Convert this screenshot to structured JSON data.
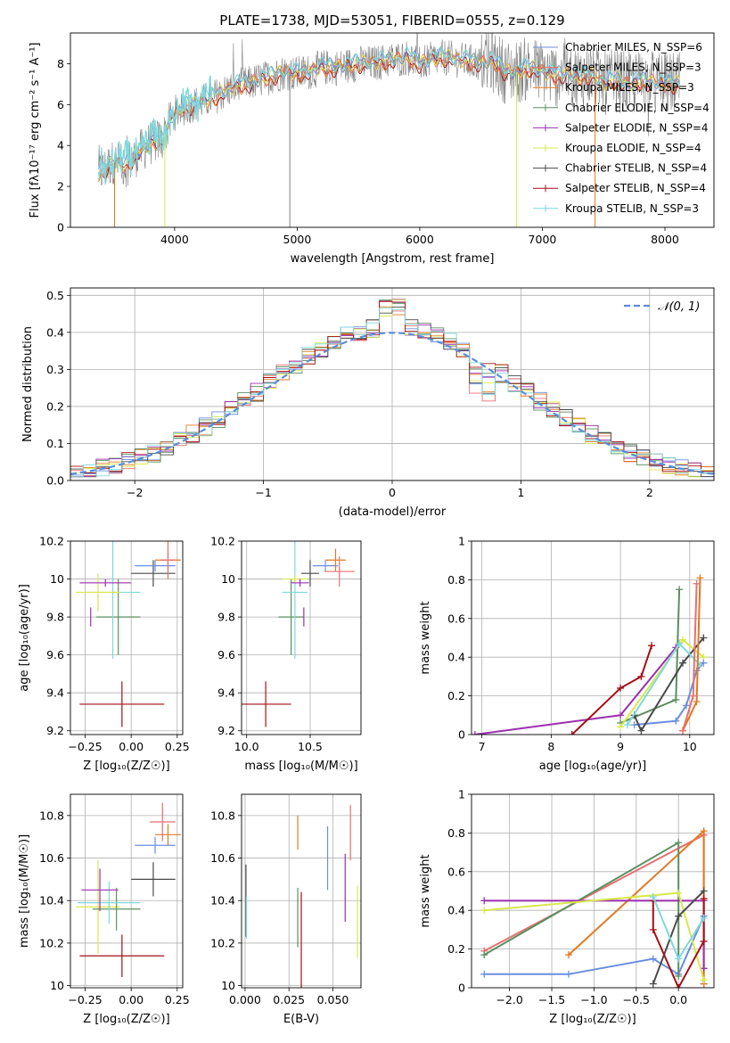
{
  "colors": {
    "chabrier_miles": "#6a8ee0",
    "salpeter_miles": "#e86f6f",
    "kroupa_miles": "#e07a22",
    "chabrier_elodie": "#5a8f5f",
    "salpeter_elodie": "#9b2fae",
    "kroupa_elodie": "#d7e84c",
    "chabrier_stelib": "#4a4a4a",
    "salpeter_stelib": "#a50f15",
    "kroupa_stelib": "#7fd8dc",
    "raw": "#808080",
    "normal": "#5b8dd9",
    "grid": "#b0b0b0"
  },
  "chart_data": [
    {
      "id": "spectrum",
      "type": "line",
      "title": "PLATE=1738, MJD=53051, FIBERID=0555, z=0.129",
      "xlabel": "wavelength [Angstrom, rest frame]",
      "ylabel": "Flux [fλ10⁻¹⁷ erg cm⁻² s⁻¹ A⁻¹]",
      "xlim": [
        3150,
        8400
      ],
      "ylim": [
        0,
        9.5
      ],
      "xticks": [
        4000,
        5000,
        6000,
        7000,
        8000
      ],
      "yticks": [
        0,
        2,
        4,
        6,
        8
      ],
      "grid": false,
      "legend": [
        {
          "label": "Chabrier MILES, N_SSP=6",
          "color": "chabrier_miles"
        },
        {
          "label": "Salpeter MILES, N_SSP=3",
          "color": "salpeter_miles"
        },
        {
          "label": "Kroupa MILES, N_SSP=3",
          "color": "kroupa_miles"
        },
        {
          "label": "Chabrier ELODIE, N_SSP=4",
          "color": "chabrier_elodie"
        },
        {
          "label": "Salpeter ELODIE, N_SSP=4",
          "color": "salpeter_elodie"
        },
        {
          "label": "Kroupa ELODIE, N_SSP=4",
          "color": "kroupa_elodie"
        },
        {
          "label": "Chabrier STELIB, N_SSP=4",
          "color": "chabrier_stelib"
        },
        {
          "label": "Salpeter STELIB, N_SSP=4",
          "color": "salpeter_stelib"
        },
        {
          "label": "Kroupa STELIB, N_SSP=3",
          "color": "kroupa_stelib"
        }
      ],
      "legend_location": "upper right",
      "continuum": {
        "x": [
          3380,
          3500,
          3600,
          3700,
          3800,
          3900,
          4000,
          4100,
          4200,
          4300,
          4400,
          4500,
          4600,
          4700,
          4800,
          4900,
          5000,
          5100,
          5200,
          5300,
          5400,
          5500,
          5600,
          5700,
          5800,
          5900,
          6000,
          6100,
          6200,
          6300,
          6400,
          6500,
          6600,
          6700,
          6800,
          6900,
          7000,
          7100,
          7200,
          7300,
          7400,
          7500,
          7600,
          7700,
          7800,
          7900,
          8000,
          8100
        ],
        "y": [
          2.6,
          3.2,
          3.0,
          3.6,
          4.1,
          4.3,
          5.6,
          5.9,
          6.1,
          6.3,
          6.6,
          6.9,
          7.0,
          7.2,
          7.4,
          7.6,
          7.5,
          7.6,
          7.8,
          7.8,
          7.9,
          8.0,
          8.0,
          8.1,
          8.2,
          8.3,
          8.0,
          8.2,
          8.3,
          8.2,
          8.1,
          8.0,
          8.1,
          7.6,
          7.6,
          7.8,
          7.6,
          7.4,
          7.5,
          7.3,
          7.5,
          7.0,
          7.2,
          7.0,
          7.1,
          7.1,
          7.0,
          7.0
        ]
      }
    },
    {
      "id": "residuals",
      "type": "histogram",
      "xlabel": "(data-model)/error",
      "ylabel": "Normed distribution",
      "xlim": [
        -2.5,
        2.5
      ],
      "ylim": [
        0,
        0.52
      ],
      "xticks": [
        -2,
        -1,
        0,
        1,
        2
      ],
      "xtick_labels": [
        "−2",
        "−1",
        "0",
        "1",
        "2"
      ],
      "yticks": [
        0.0,
        0.1,
        0.2,
        0.3,
        0.4,
        0.5
      ],
      "ytick_labels": [
        "0.0",
        "0.1",
        "0.2",
        "0.3",
        "0.4",
        "0.5"
      ],
      "grid": true,
      "legend": [
        {
          "label": "𝒩(0, 1)",
          "color": "normal",
          "style": "dashed"
        }
      ],
      "legend_location": "upper right",
      "bins": {
        "start": -2.5,
        "width": 0.1,
        "count": 50
      }
    },
    {
      "id": "age_vs_z",
      "type": "errorbar",
      "xlabel": "Z [log₁₀(Z/Z☉)]",
      "ylabel": "age  [log₁₀(age/yr)]",
      "xlim": [
        -0.33,
        0.28
      ],
      "ylim": [
        9.18,
        10.2
      ],
      "xticks": [
        -0.25,
        0.0,
        0.25
      ],
      "xtick_labels": [
        "−0.25",
        "0.00",
        "0.25"
      ],
      "yticks": [
        9.2,
        9.4,
        9.6,
        9.8,
        10.0,
        10.2
      ],
      "grid": true,
      "points": [
        {
          "model": "salpeter_stelib",
          "x": -0.05,
          "xerr": 0.23,
          "y": 9.34,
          "yerr": 0.12
        },
        {
          "model": "chabrier_elodie",
          "x": -0.07,
          "xerr": 0.12,
          "y": 9.8,
          "yerr": 0.2
        },
        {
          "model": "salpeter_elodie",
          "x": -0.22,
          "xerr": 0.0,
          "y": 9.8,
          "yerr": 0.05
        },
        {
          "model": "kroupa_stelib",
          "x": -0.1,
          "xerr": 0.15,
          "y": 9.93,
          "yerr": 0.35
        },
        {
          "model": "kroupa_elodie",
          "x": -0.18,
          "xerr": 0.12,
          "y": 9.93,
          "yerr": 0.1
        },
        {
          "model": "salpeter_elodie",
          "x": -0.14,
          "xerr": 0.14,
          "y": 9.98,
          "yerr": 0.02
        },
        {
          "model": "chabrier_stelib",
          "x": 0.12,
          "xerr": 0.12,
          "y": 10.03,
          "yerr": 0.07
        },
        {
          "model": "chabrier_miles",
          "x": 0.13,
          "xerr": 0.11,
          "y": 10.07,
          "yerr": 0.03
        },
        {
          "model": "kroupa_miles",
          "x": 0.2,
          "xerr": 0.07,
          "y": 10.1,
          "yerr": 0.06
        },
        {
          "model": "salpeter_miles",
          "x": 0.2,
          "xerr": 0.04,
          "y": 10.1,
          "yerr": 0.1
        }
      ]
    },
    {
      "id": "age_vs_mass",
      "type": "errorbar",
      "xlabel": "mass [log₁₀(M/M☉)]",
      "ylabel": "",
      "xlim": [
        9.96,
        10.9
      ],
      "ylim": [
        9.18,
        10.2
      ],
      "xticks": [
        10.0,
        10.5
      ],
      "xtick_labels": [
        "10.0",
        "10.5"
      ],
      "yticks": [
        9.2,
        9.4,
        9.6,
        9.8,
        10.0,
        10.2
      ],
      "grid": true,
      "points": [
        {
          "model": "salpeter_stelib",
          "x": 10.15,
          "xerr": 0.2,
          "y": 9.34,
          "yerr": 0.12
        },
        {
          "model": "chabrier_elodie",
          "x": 10.35,
          "xerr": 0.1,
          "y": 9.8,
          "yerr": 0.2
        },
        {
          "model": "salpeter_elodie",
          "x": 10.45,
          "xerr": 0.0,
          "y": 9.8,
          "yerr": 0.05
        },
        {
          "model": "kroupa_stelib",
          "x": 10.38,
          "xerr": 0.1,
          "y": 9.93,
          "yerr": 0.35
        },
        {
          "model": "kroupa_elodie",
          "x": 10.38,
          "xerr": 0.1,
          "y": 10.0,
          "yerr": 0.02
        },
        {
          "model": "salpeter_elodie",
          "x": 10.42,
          "xerr": 0.07,
          "y": 9.98,
          "yerr": 0.02
        },
        {
          "model": "chabrier_stelib",
          "x": 10.5,
          "xerr": 0.07,
          "y": 10.03,
          "yerr": 0.07
        },
        {
          "model": "chabrier_miles",
          "x": 10.62,
          "xerr": 0.1,
          "y": 10.07,
          "yerr": 0.03
        },
        {
          "model": "kroupa_miles",
          "x": 10.7,
          "xerr": 0.08,
          "y": 10.1,
          "yerr": 0.06
        },
        {
          "model": "salpeter_miles",
          "x": 10.73,
          "xerr": 0.12,
          "y": 10.04,
          "yerr": 0.08
        }
      ]
    },
    {
      "id": "weight_vs_age",
      "type": "line",
      "xlabel": "age  [log₁₀(age/yr)]",
      "ylabel": "mass weight",
      "xlim": [
        6.85,
        10.35
      ],
      "ylim": [
        0,
        1.0
      ],
      "xticks": [
        7,
        8,
        9,
        10
      ],
      "yticks": [
        0.0,
        0.2,
        0.4,
        0.6,
        0.8,
        1.0
      ],
      "grid": true,
      "series": [
        {
          "model": "salpeter_elodie",
          "x": [
            6.9,
            9.0,
            9.8
          ],
          "y": [
            0.0,
            0.1,
            0.45
          ]
        },
        {
          "model": "salpeter_stelib",
          "x": [
            8.3,
            9.0,
            9.3,
            9.45
          ],
          "y": [
            0.0,
            0.24,
            0.3,
            0.46
          ]
        },
        {
          "model": "chabrier_elodie",
          "x": [
            9.0,
            9.8,
            9.85
          ],
          "y": [
            0.06,
            0.18,
            0.75
          ]
        },
        {
          "model": "kroupa_elodie",
          "x": [
            9.0,
            9.9,
            10.2
          ],
          "y": [
            0.04,
            0.49,
            0.4
          ]
        },
        {
          "model": "chabrier_miles",
          "x": [
            9.2,
            9.8,
            9.95,
            10.1,
            10.2
          ],
          "y": [
            0.05,
            0.07,
            0.15,
            0.33,
            0.37
          ]
        },
        {
          "model": "chabrier_stelib",
          "x": [
            9.2,
            9.3,
            9.9,
            10.2
          ],
          "y": [
            0.1,
            0.02,
            0.37,
            0.5
          ]
        },
        {
          "model": "kroupa_stelib",
          "x": [
            9.1,
            9.85,
            10.15
          ],
          "y": [
            0.05,
            0.47,
            0.36
          ]
        },
        {
          "model": "kroupa_miles",
          "x": [
            9.9,
            10.1,
            10.15
          ],
          "y": [
            0.02,
            0.17,
            0.81
          ]
        },
        {
          "model": "salpeter_miles",
          "x": [
            9.9,
            10.05,
            10.1
          ],
          "y": [
            0.02,
            0.2,
            0.78
          ]
        }
      ]
    },
    {
      "id": "mass_vs_z",
      "type": "errorbar",
      "xlabel": "Z [log₁₀(Z/Z☉)]",
      "ylabel": "mass [log₁₀(M/M☉)]",
      "xlim": [
        -0.33,
        0.28
      ],
      "ylim": [
        9.99,
        10.9
      ],
      "xticks": [
        -0.25,
        0.0,
        0.25
      ],
      "xtick_labels": [
        "−0.25",
        "0.00",
        "0.25"
      ],
      "yticks": [
        10.0,
        10.2,
        10.4,
        10.6,
        10.8
      ],
      "grid": true,
      "points": [
        {
          "model": "salpeter_stelib",
          "x": -0.05,
          "xerr": 0.23,
          "y": 10.14,
          "yerr": 0.1
        },
        {
          "model": "kroupa_elodie",
          "x": -0.18,
          "xerr": 0.12,
          "y": 10.37,
          "yerr": 0.22
        },
        {
          "model": "chabrier_elodie",
          "x": -0.08,
          "xerr": 0.13,
          "y": 10.36,
          "yerr": 0.1
        },
        {
          "model": "kroupa_stelib",
          "x": -0.12,
          "xerr": 0.17,
          "y": 10.39,
          "yerr": 0.1
        },
        {
          "model": "salpeter_elodie",
          "x": -0.17,
          "xerr": 0.1,
          "y": 10.45,
          "yerr": 0.1
        },
        {
          "model": "chabrier_stelib",
          "x": 0.12,
          "xerr": 0.12,
          "y": 10.5,
          "yerr": 0.08
        },
        {
          "model": "chabrier_miles",
          "x": 0.13,
          "xerr": 0.11,
          "y": 10.66,
          "yerr": 0.04
        },
        {
          "model": "kroupa_miles",
          "x": 0.2,
          "xerr": 0.07,
          "y": 10.71,
          "yerr": 0.05
        },
        {
          "model": "salpeter_miles",
          "x": 0.17,
          "xerr": 0.07,
          "y": 10.77,
          "yerr": 0.09
        }
      ]
    },
    {
      "id": "mass_vs_ebv",
      "type": "errorbar",
      "xlabel": "E(B-V)",
      "ylabel": "",
      "xlim": [
        -0.002,
        0.066
      ],
      "ylim": [
        9.99,
        10.9
      ],
      "xticks": [
        0.0,
        0.025,
        0.05
      ],
      "xtick_labels": [
        "0.000",
        "0.025",
        "0.050"
      ],
      "yticks": [
        10.0,
        10.2,
        10.4,
        10.6,
        10.8
      ],
      "grid": true,
      "points": [
        {
          "model": "chabrier_stelib",
          "x": 0.0005,
          "xerr": 0,
          "y": 10.4,
          "yerr": 0.17
        },
        {
          "model": "kroupa_stelib",
          "x": 0.0008,
          "xerr": 0,
          "y": 10.32,
          "yerr": 0.1
        },
        {
          "model": "chabrier_elodie",
          "x": 0.03,
          "xerr": 0,
          "y": 10.32,
          "yerr": 0.14
        },
        {
          "model": "salpeter_stelib",
          "x": 0.032,
          "xerr": 0,
          "y": 10.19,
          "yerr": 0.25
        },
        {
          "model": "kroupa_miles",
          "x": 0.03,
          "xerr": 0,
          "y": 10.72,
          "yerr": 0.08
        },
        {
          "model": "chabrier_miles",
          "x": 0.047,
          "xerr": 0,
          "y": 10.6,
          "yerr": 0.15
        },
        {
          "model": "salpeter_elodie",
          "x": 0.057,
          "xerr": 0,
          "y": 10.46,
          "yerr": 0.16
        },
        {
          "model": "salpeter_miles",
          "x": 0.06,
          "xerr": 0,
          "y": 10.72,
          "yerr": 0.13
        },
        {
          "model": "kroupa_elodie",
          "x": 0.064,
          "xerr": 0,
          "y": 10.3,
          "yerr": 0.17
        }
      ]
    },
    {
      "id": "weight_vs_z",
      "type": "line",
      "xlabel": "Z [log₁₀(Z/Z☉)]",
      "ylabel": "mass weight",
      "xlim": [
        -2.45,
        0.42
      ],
      "ylim": [
        0,
        1.0
      ],
      "xticks": [
        -2.0,
        -1.5,
        -1.0,
        -0.5,
        0.0
      ],
      "xtick_labels": [
        "−2.0",
        "−1.5",
        "−1.0",
        "−0.5",
        "0.0"
      ],
      "yticks": [
        0.0,
        0.2,
        0.4,
        0.6,
        0.8,
        1.0
      ],
      "grid": true,
      "series": [
        {
          "model": "chabrier_miles",
          "x": [
            -2.3,
            -1.3,
            -0.3,
            0.0,
            0.3
          ],
          "y": [
            0.07,
            0.07,
            0.15,
            0.07,
            0.37
          ]
        },
        {
          "model": "salpeter_miles",
          "x": [
            -2.3,
            0.3,
            0.3
          ],
          "y": [
            0.19,
            0.79,
            0.02
          ]
        },
        {
          "model": "kroupa_miles",
          "x": [
            -1.3,
            0.3,
            0.3
          ],
          "y": [
            0.17,
            0.81,
            0.02
          ]
        },
        {
          "model": "chabrier_elodie",
          "x": [
            -2.3,
            0.0,
            0.0
          ],
          "y": [
            0.17,
            0.75,
            0.06
          ]
        },
        {
          "model": "salpeter_elodie",
          "x": [
            -2.3,
            -0.3,
            0.3,
            0.3
          ],
          "y": [
            0.45,
            0.45,
            0.45,
            0.1
          ]
        },
        {
          "model": "kroupa_elodie",
          "x": [
            -2.3,
            0.0,
            0.3
          ],
          "y": [
            0.4,
            0.49,
            0.04
          ]
        },
        {
          "model": "chabrier_stelib",
          "x": [
            -0.3,
            0.0,
            0.3
          ],
          "y": [
            0.02,
            0.37,
            0.5
          ]
        },
        {
          "model": "salpeter_stelib",
          "x": [
            -0.3,
            -0.3,
            0.0,
            0.3,
            0.3
          ],
          "y": [
            0.45,
            0.3,
            0.0,
            0.24,
            0.46
          ]
        },
        {
          "model": "kroupa_stelib",
          "x": [
            -0.3,
            0.0,
            0.3
          ],
          "y": [
            0.47,
            0.15,
            0.36
          ]
        }
      ]
    }
  ]
}
